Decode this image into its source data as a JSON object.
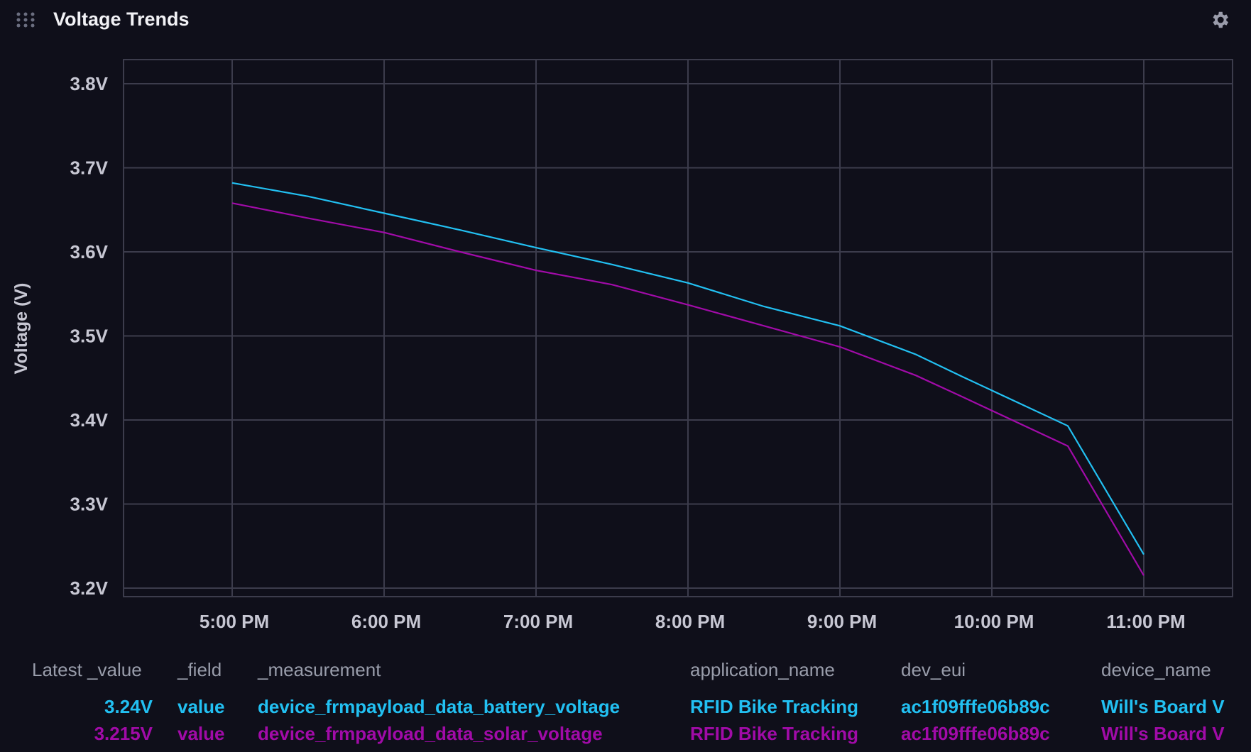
{
  "header": {
    "title": "Voltage Trends",
    "drag_icon": "drag-handle-icon",
    "settings_icon": "gear-icon"
  },
  "colors": {
    "background": "#0f0f1a",
    "grid": "#3c3c4c",
    "series_battery": "#22c0f2",
    "series_solar": "#a10ba8"
  },
  "chart_data": {
    "type": "line",
    "title": "Voltage Trends",
    "xlabel": "",
    "ylabel": "Voltage (V)",
    "x_ticks": [
      "5:00 PM",
      "6:00 PM",
      "7:00 PM",
      "8:00 PM",
      "9:00 PM",
      "10:00 PM",
      "11:00 PM"
    ],
    "y_ticks": [
      "3.2V",
      "3.3V",
      "3.4V",
      "3.5V",
      "3.6V",
      "3.7V",
      "3.8V"
    ],
    "ylim": [
      3.19,
      3.829
    ],
    "xlim": [
      "4:17 PM",
      "11:35 PM"
    ],
    "grid": true,
    "x": [
      "5:00 PM",
      "5:30 PM",
      "6:00 PM",
      "6:30 PM",
      "7:00 PM",
      "7:30 PM",
      "8:00 PM",
      "8:30 PM",
      "9:00 PM",
      "9:30 PM",
      "9:48 PM",
      "10:30 PM",
      "11:00 PM"
    ],
    "series": [
      {
        "name": "device_frmpayload_data_battery_voltage",
        "color": "#22c0f2",
        "values": [
          3.682,
          3.666,
          3.646,
          3.626,
          3.605,
          3.585,
          3.563,
          3.535,
          3.512,
          3.478,
          3.452,
          3.393,
          3.24
        ]
      },
      {
        "name": "device_frmpayload_data_solar_voltage",
        "color": "#a10ba8",
        "values": [
          3.658,
          3.64,
          3.623,
          3.6,
          3.578,
          3.561,
          3.537,
          3.512,
          3.487,
          3.453,
          3.428,
          3.369,
          3.215
        ]
      }
    ]
  },
  "legend": {
    "headers": [
      "Latest _value",
      "_field",
      "_measurement",
      "application_name",
      "dev_eui",
      "device_name"
    ],
    "rows": [
      {
        "latest": "3.24V",
        "field": "value",
        "measurement": "device_frmpayload_data_battery_voltage",
        "application": "RFID Bike Tracking",
        "dev_eui": "ac1f09fffe06b89c",
        "device_name": "Will's Board V",
        "color": "#22c0f2"
      },
      {
        "latest": "3.215V",
        "field": "value",
        "measurement": "device_frmpayload_data_solar_voltage",
        "application": "RFID Bike Tracking",
        "dev_eui": "ac1f09fffe06b89c",
        "device_name": "Will's Board V",
        "color": "#a10ba8"
      }
    ]
  }
}
